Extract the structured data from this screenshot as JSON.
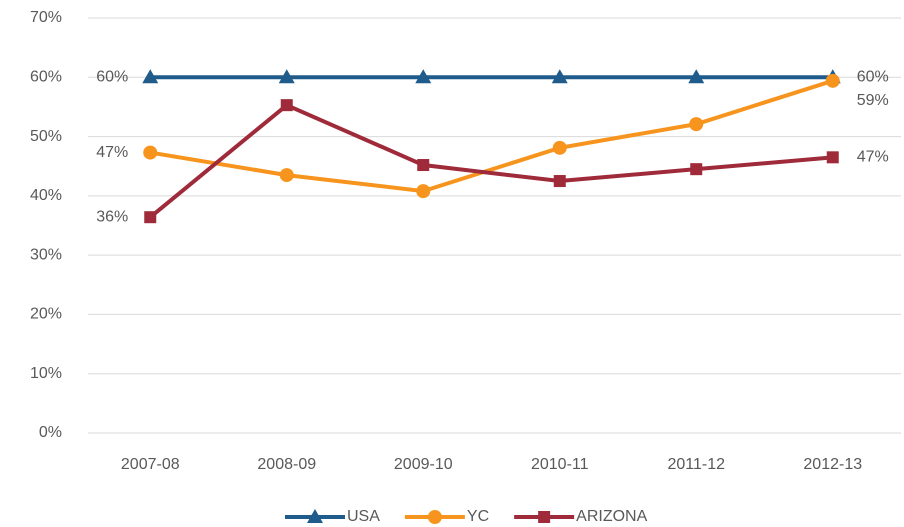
{
  "chart_data": {
    "type": "line",
    "categories": [
      "2007-08",
      "2008-09",
      "2009-10",
      "2010-11",
      "2011-12",
      "2012-13"
    ],
    "series": [
      {
        "name": "USA",
        "color": "#1f5c8b",
        "marker": "triangle",
        "values": [
          60,
          60,
          60,
          60,
          60,
          60
        ],
        "value_labels": [
          "60%",
          null,
          null,
          null,
          null,
          "60%"
        ]
      },
      {
        "name": "YC",
        "color": "#f7941d",
        "marker": "circle",
        "values": [
          47.3,
          43.5,
          40.8,
          48.1,
          52.1,
          59.4
        ],
        "value_labels": [
          "47%",
          null,
          null,
          null,
          null,
          "59%"
        ]
      },
      {
        "name": "ARIZONA",
        "color": "#9e2a3a",
        "marker": "square",
        "values": [
          36.4,
          55.3,
          45.2,
          42.5,
          44.5,
          46.5
        ],
        "value_labels": [
          "36%",
          null,
          null,
          null,
          null,
          "47%"
        ]
      }
    ],
    "ylim": [
      0,
      70
    ],
    "yticks": [
      {
        "value": 0,
        "label": "0%"
      },
      {
        "value": 10,
        "label": "10%"
      },
      {
        "value": 20,
        "label": "20%"
      },
      {
        "value": 30,
        "label": "30%"
      },
      {
        "value": 40,
        "label": "40%"
      },
      {
        "value": 50,
        "label": "50%"
      },
      {
        "value": 60,
        "label": "60%"
      },
      {
        "value": 70,
        "label": "70%"
      }
    ],
    "grid": true,
    "legend": "bottom"
  }
}
